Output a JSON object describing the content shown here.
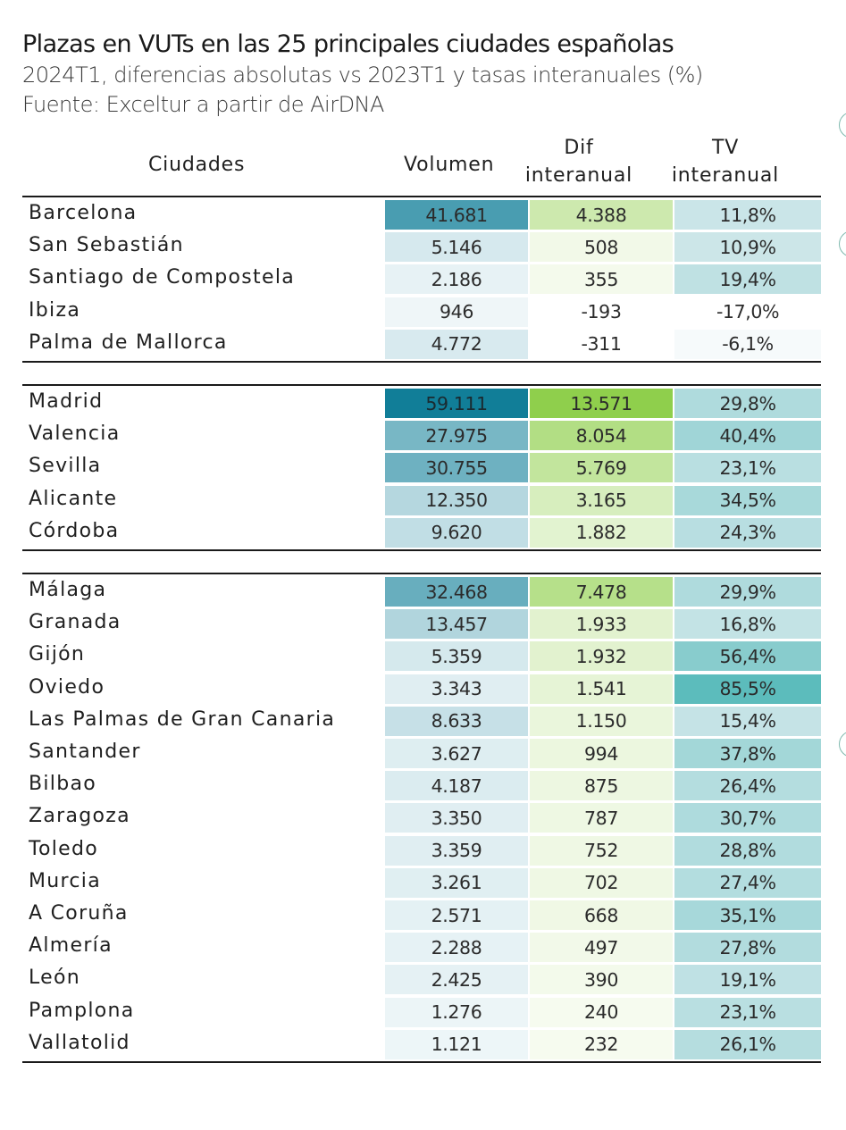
{
  "title": "Plazas en VUTs en las 25 principales ciudades españolas",
  "subtitle": "2024T1, diferencias absolutas vs 2023T1 y tasas interanuales (%)",
  "source": "Fuente: Exceltur a partir de AirDNA",
  "headers": {
    "city": "Ciudades",
    "volume": "Volumen",
    "dif_line1": "Dif",
    "dif_line2": "interanual",
    "tv_line1": "TV",
    "tv_line2": "interanual"
  },
  "groups": [
    {
      "rows": [
        {
          "city": "Barcelona",
          "volume": "41.681",
          "dif": "4.388",
          "tv": "11,8%"
        },
        {
          "city": "San Sebastián",
          "volume": "5.146",
          "dif": "508",
          "tv": "10,9%"
        },
        {
          "city": "Santiago de Compostela",
          "volume": "2.186",
          "dif": "355",
          "tv": "19,4%"
        },
        {
          "city": "Ibiza",
          "volume": "946",
          "dif": "-193",
          "tv": "-17,0%"
        },
        {
          "city": "Palma de Mallorca",
          "volume": "4.772",
          "dif": "-311",
          "tv": "-6,1%"
        }
      ]
    },
    {
      "rows": [
        {
          "city": "Madrid",
          "volume": "59.111",
          "dif": "13.571",
          "tv": "29,8%"
        },
        {
          "city": "Valencia",
          "volume": "27.975",
          "dif": "8.054",
          "tv": "40,4%"
        },
        {
          "city": "Sevilla",
          "volume": "30.755",
          "dif": "5.769",
          "tv": "23,1%"
        },
        {
          "city": "Alicante",
          "volume": "12.350",
          "dif": "3.165",
          "tv": "34,5%"
        },
        {
          "city": "Córdoba",
          "volume": "9.620",
          "dif": "1.882",
          "tv": "24,3%"
        }
      ]
    },
    {
      "rows": [
        {
          "city": "Málaga",
          "volume": "32.468",
          "dif": "7.478",
          "tv": "29,9%"
        },
        {
          "city": "Granada",
          "volume": "13.457",
          "dif": "1.933",
          "tv": "16,8%"
        },
        {
          "city": "Gijón",
          "volume": "5.359",
          "dif": "1.932",
          "tv": "56,4%"
        },
        {
          "city": "Oviedo",
          "volume": "3.343",
          "dif": "1.541",
          "tv": "85,5%"
        },
        {
          "city": "Las Palmas de Gran Canaria",
          "volume": "8.633",
          "dif": "1.150",
          "tv": "15,4%"
        },
        {
          "city": "Santander",
          "volume": "3.627",
          "dif": "994",
          "tv": "37,8%"
        },
        {
          "city": "Bilbao",
          "volume": "4.187",
          "dif": "875",
          "tv": "26,4%"
        },
        {
          "city": "Zaragoza",
          "volume": "3.350",
          "dif": "787",
          "tv": "30,7%"
        },
        {
          "city": "Toledo",
          "volume": "3.359",
          "dif": "752",
          "tv": "28,8%"
        },
        {
          "city": "Murcia",
          "volume": "3.261",
          "dif": "702",
          "tv": "27,4%"
        },
        {
          "city": "A Coruña",
          "volume": "2.571",
          "dif": "668",
          "tv": "35,1%"
        },
        {
          "city": "Almería",
          "volume": "2.288",
          "dif": "497",
          "tv": "27,8%"
        },
        {
          "city": "León",
          "volume": "2.425",
          "dif": "390",
          "tv": "19,1%"
        },
        {
          "city": "Pamplona",
          "volume": "1.276",
          "dif": "240",
          "tv": "23,1%"
        },
        {
          "city": "Vallatolid",
          "volume": "1.121",
          "dif": "232",
          "tv": "26,1%"
        }
      ]
    }
  ],
  "colors": {
    "text": "#1f1f1f",
    "rule": "#1a1a1a",
    "volume_low": "#f7fbfc",
    "volume_high": "#0e7d97",
    "dif_low": "#fbfdf7",
    "dif_high": "#8fcf4c",
    "tv_negative": "#f6fafb",
    "tv_low": "#dcecef",
    "tv_high": "#5cbcbc"
  }
}
